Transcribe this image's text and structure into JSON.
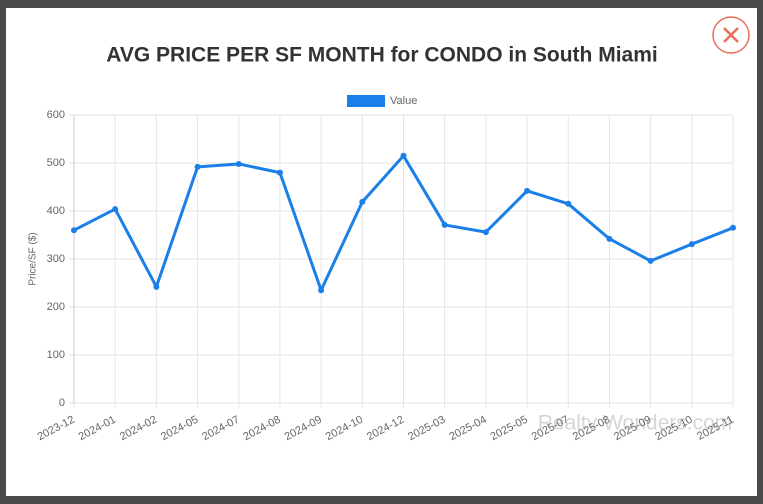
{
  "chart_data": {
    "type": "line",
    "title": "AVG PRICE PER SF MONTH for CONDO in South Miami",
    "y_label": "Price/SF ($)",
    "watermark": "Realty Wonders.com",
    "categories": [
      "2023-12",
      "2024-01",
      "2024-02",
      "2024-05",
      "2024-07",
      "2024-08",
      "2024-09",
      "2024-10",
      "2024-12",
      "2025-03",
      "2025-04",
      "2025-05",
      "2025-07",
      "2025-08",
      "2025-09",
      "2025-10",
      "2025-11"
    ],
    "series": [
      {
        "name": "Value",
        "color": "#1a7fe8",
        "values": [
          360,
          404,
          242,
          492,
          498,
          480,
          235,
          419,
          515,
          371,
          356,
          442,
          415,
          342,
          296,
          331,
          365
        ]
      }
    ],
    "ylim": [
      0,
      600
    ],
    "yticks": [
      0,
      100,
      200,
      300,
      400,
      500,
      600
    ],
    "grid": true
  }
}
